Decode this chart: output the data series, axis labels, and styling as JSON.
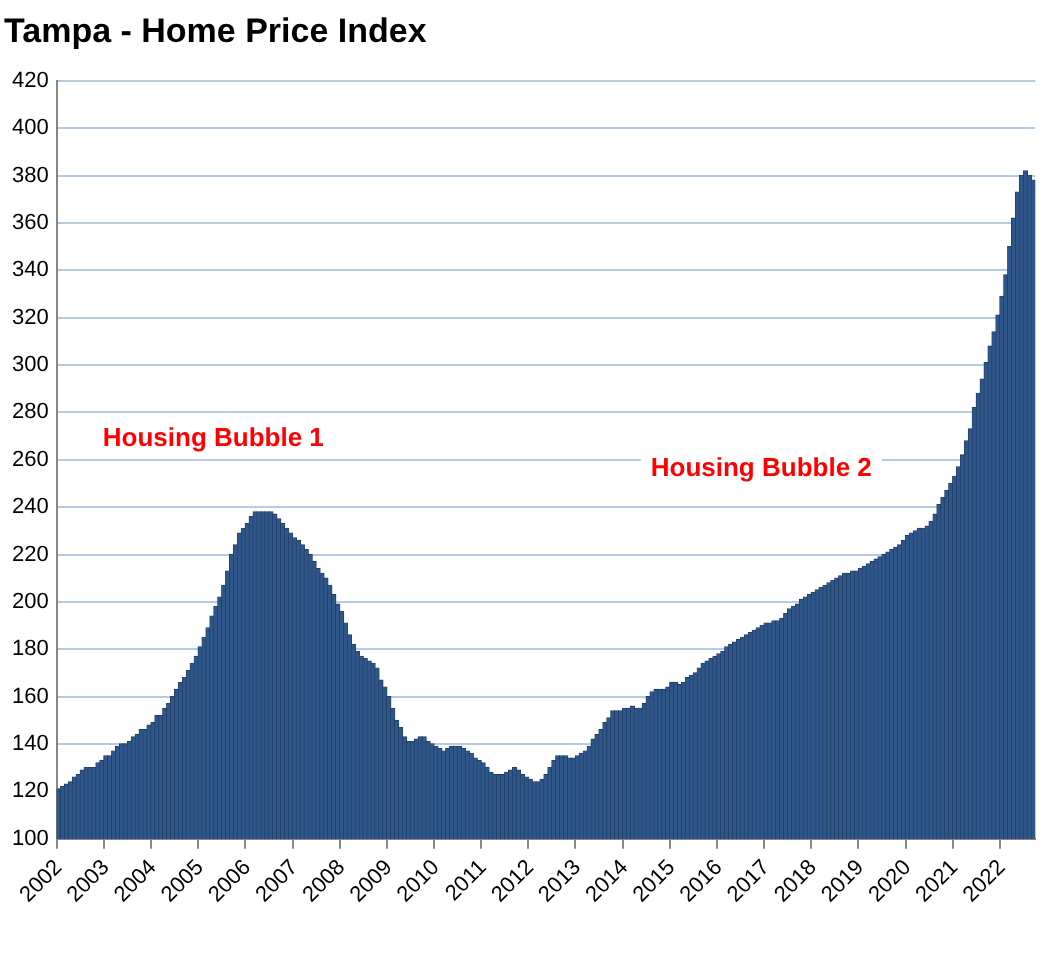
{
  "chart_data": {
    "type": "bar",
    "title": "Tampa - Home Price Index",
    "categories": [
      "2002",
      null,
      null,
      null,
      null,
      null,
      null,
      null,
      null,
      null,
      null,
      null,
      "2003",
      null,
      null,
      null,
      null,
      null,
      null,
      null,
      null,
      null,
      null,
      null,
      "2004",
      null,
      null,
      null,
      null,
      null,
      null,
      null,
      null,
      null,
      null,
      null,
      "2005",
      null,
      null,
      null,
      null,
      null,
      null,
      null,
      null,
      null,
      null,
      null,
      "2006",
      null,
      null,
      null,
      null,
      null,
      null,
      null,
      null,
      null,
      null,
      null,
      "2007",
      null,
      null,
      null,
      null,
      null,
      null,
      null,
      null,
      null,
      null,
      null,
      "2008",
      null,
      null,
      null,
      null,
      null,
      null,
      null,
      null,
      null,
      null,
      null,
      "2009",
      null,
      null,
      null,
      null,
      null,
      null,
      null,
      null,
      null,
      null,
      null,
      "2010",
      null,
      null,
      null,
      null,
      null,
      null,
      null,
      null,
      null,
      null,
      null,
      "2011",
      null,
      null,
      null,
      null,
      null,
      null,
      null,
      null,
      null,
      null,
      null,
      "2012",
      null,
      null,
      null,
      null,
      null,
      null,
      null,
      null,
      null,
      null,
      null,
      "2013",
      null,
      null,
      null,
      null,
      null,
      null,
      null,
      null,
      null,
      null,
      null,
      "2014",
      null,
      null,
      null,
      null,
      null,
      null,
      null,
      null,
      null,
      null,
      null,
      "2015",
      null,
      null,
      null,
      null,
      null,
      null,
      null,
      null,
      null,
      null,
      null,
      "2016",
      null,
      null,
      null,
      null,
      null,
      null,
      null,
      null,
      null,
      null,
      null,
      "2017",
      null,
      null,
      null,
      null,
      null,
      null,
      null,
      null,
      null,
      null,
      null,
      "2018",
      null,
      null,
      null,
      null,
      null,
      null,
      null,
      null,
      null,
      null,
      null,
      "2019",
      null,
      null,
      null,
      null,
      null,
      null,
      null,
      null,
      null,
      null,
      null,
      "2020",
      null,
      null,
      null,
      null,
      null,
      null,
      null,
      null,
      null,
      null,
      null,
      "2021",
      null,
      null,
      null,
      null,
      null,
      null,
      null,
      null,
      null,
      null,
      null,
      "2022",
      null,
      null,
      null,
      null,
      null,
      null,
      null,
      null
    ],
    "values": [
      121,
      122,
      123,
      124,
      126,
      127,
      129,
      130,
      130,
      130,
      132,
      133,
      135,
      135,
      137,
      139,
      140,
      140,
      141,
      143,
      144,
      146,
      146,
      148,
      149,
      152,
      152,
      155,
      157,
      160,
      163,
      166,
      168,
      171,
      174,
      177,
      181,
      185,
      189,
      194,
      198,
      202,
      207,
      213,
      220,
      224,
      229,
      231,
      233,
      236,
      238,
      238,
      238,
      238,
      238,
      237,
      235,
      233,
      231,
      229,
      227,
      226,
      224,
      222,
      220,
      217,
      214,
      212,
      210,
      207,
      203,
      199,
      196,
      191,
      186,
      182,
      179,
      177,
      176,
      175,
      174,
      172,
      167,
      164,
      160,
      155,
      150,
      147,
      143,
      141,
      141,
      142,
      143,
      143,
      141,
      140,
      139,
      138,
      137,
      138,
      139,
      139,
      139,
      138,
      137,
      136,
      134,
      133,
      132,
      130,
      128,
      127,
      127,
      127,
      128,
      129,
      130,
      129,
      127,
      126,
      125,
      124,
      124,
      125,
      127,
      130,
      133,
      135,
      135,
      135,
      134,
      134,
      135,
      136,
      137,
      139,
      142,
      144,
      146,
      149,
      151,
      154,
      154,
      154,
      155,
      155,
      156,
      155,
      155,
      157,
      160,
      162,
      163,
      163,
      163,
      164,
      166,
      166,
      165,
      166,
      168,
      169,
      170,
      172,
      174,
      175,
      176,
      177,
      178,
      179,
      181,
      182,
      183,
      184,
      185,
      186,
      187,
      188,
      189,
      190,
      191,
      191,
      192,
      192,
      193,
      195,
      197,
      198,
      199,
      201,
      202,
      203,
      204,
      205,
      206,
      207,
      208,
      209,
      210,
      211,
      212,
      212,
      213,
      213,
      214,
      215,
      216,
      217,
      218,
      219,
      220,
      221,
      222,
      223,
      224,
      226,
      228,
      229,
      230,
      231,
      231,
      232,
      234,
      237,
      241,
      244,
      247,
      250,
      253,
      257,
      262,
      268,
      273,
      282,
      288,
      294,
      301,
      308,
      314,
      321,
      329,
      338,
      350,
      362,
      373,
      380,
      382,
      380,
      378
    ],
    "color": "#2f5689",
    "ylim": [
      100,
      420
    ],
    "yticks": [
      100,
      120,
      140,
      160,
      180,
      200,
      220,
      240,
      260,
      280,
      300,
      320,
      340,
      360,
      380,
      400,
      420
    ],
    "grid": "y",
    "legend": false,
    "annotations": [
      "Housing Bubble 1",
      "Housing Bubble 2"
    ]
  }
}
